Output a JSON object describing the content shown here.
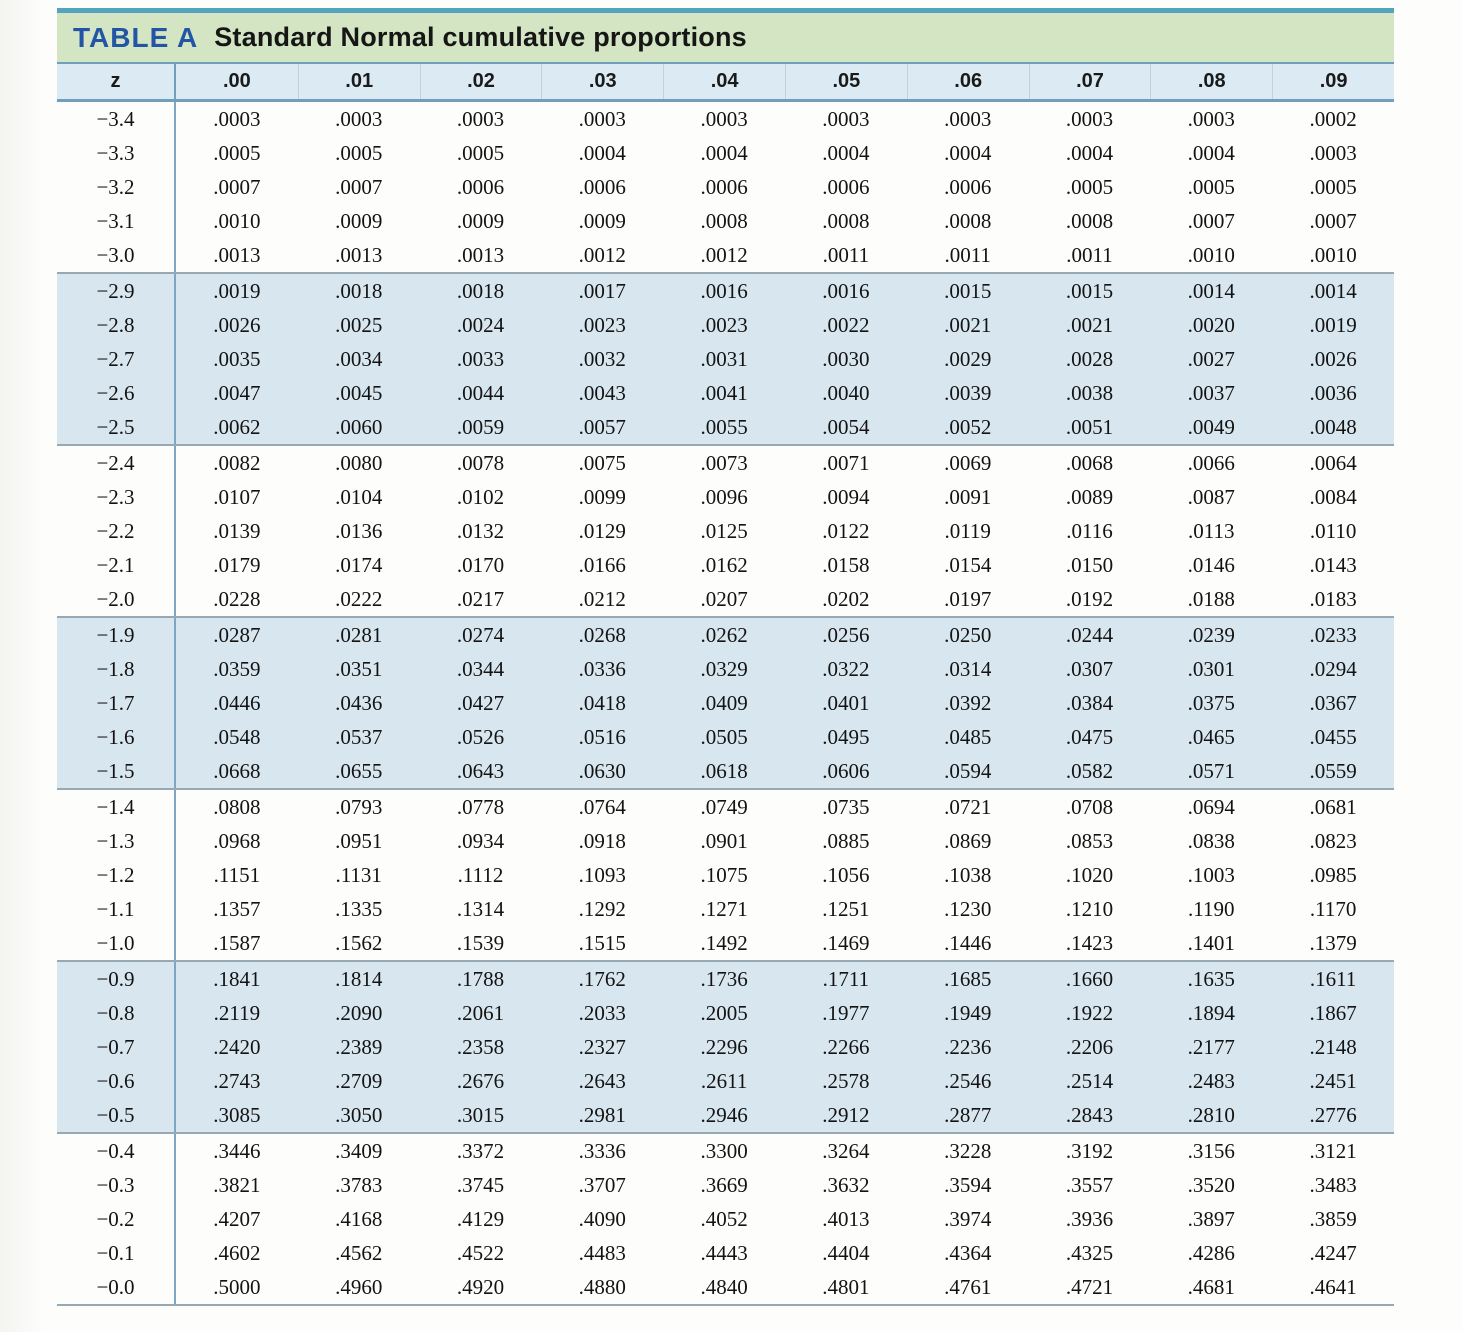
{
  "title": {
    "label": "TABLE A",
    "text": "Standard Normal cumulative proportions"
  },
  "colors": {
    "top_rule": "#55a4bf",
    "title_bar_bg": "#d3e5c2",
    "title_label_blue": "#2355a6",
    "header_row_bg": "#dceaf3",
    "header_rule": "#6f9fbd",
    "band_blue": "#d8e6ef",
    "band_white": "#fdfdfc",
    "block_rule": "#98a8b2",
    "z_divider": "#7ba6c4"
  },
  "table": {
    "corner_header": "z",
    "column_headers": [
      ".00",
      ".01",
      ".02",
      ".03",
      ".04",
      ".05",
      ".06",
      ".07",
      ".08",
      ".09"
    ],
    "rows": [
      {
        "z": "−3.4",
        "values": [
          ".0003",
          ".0003",
          ".0003",
          ".0003",
          ".0003",
          ".0003",
          ".0003",
          ".0003",
          ".0003",
          ".0002"
        ]
      },
      {
        "z": "−3.3",
        "values": [
          ".0005",
          ".0005",
          ".0005",
          ".0004",
          ".0004",
          ".0004",
          ".0004",
          ".0004",
          ".0004",
          ".0003"
        ]
      },
      {
        "z": "−3.2",
        "values": [
          ".0007",
          ".0007",
          ".0006",
          ".0006",
          ".0006",
          ".0006",
          ".0006",
          ".0005",
          ".0005",
          ".0005"
        ]
      },
      {
        "z": "−3.1",
        "values": [
          ".0010",
          ".0009",
          ".0009",
          ".0009",
          ".0008",
          ".0008",
          ".0008",
          ".0008",
          ".0007",
          ".0007"
        ]
      },
      {
        "z": "−3.0",
        "values": [
          ".0013",
          ".0013",
          ".0013",
          ".0012",
          ".0012",
          ".0011",
          ".0011",
          ".0011",
          ".0010",
          ".0010"
        ]
      },
      {
        "z": "−2.9",
        "values": [
          ".0019",
          ".0018",
          ".0018",
          ".0017",
          ".0016",
          ".0016",
          ".0015",
          ".0015",
          ".0014",
          ".0014"
        ]
      },
      {
        "z": "−2.8",
        "values": [
          ".0026",
          ".0025",
          ".0024",
          ".0023",
          ".0023",
          ".0022",
          ".0021",
          ".0021",
          ".0020",
          ".0019"
        ]
      },
      {
        "z": "−2.7",
        "values": [
          ".0035",
          ".0034",
          ".0033",
          ".0032",
          ".0031",
          ".0030",
          ".0029",
          ".0028",
          ".0027",
          ".0026"
        ]
      },
      {
        "z": "−2.6",
        "values": [
          ".0047",
          ".0045",
          ".0044",
          ".0043",
          ".0041",
          ".0040",
          ".0039",
          ".0038",
          ".0037",
          ".0036"
        ]
      },
      {
        "z": "−2.5",
        "values": [
          ".0062",
          ".0060",
          ".0059",
          ".0057",
          ".0055",
          ".0054",
          ".0052",
          ".0051",
          ".0049",
          ".0048"
        ]
      },
      {
        "z": "−2.4",
        "values": [
          ".0082",
          ".0080",
          ".0078",
          ".0075",
          ".0073",
          ".0071",
          ".0069",
          ".0068",
          ".0066",
          ".0064"
        ]
      },
      {
        "z": "−2.3",
        "values": [
          ".0107",
          ".0104",
          ".0102",
          ".0099",
          ".0096",
          ".0094",
          ".0091",
          ".0089",
          ".0087",
          ".0084"
        ]
      },
      {
        "z": "−2.2",
        "values": [
          ".0139",
          ".0136",
          ".0132",
          ".0129",
          ".0125",
          ".0122",
          ".0119",
          ".0116",
          ".0113",
          ".0110"
        ]
      },
      {
        "z": "−2.1",
        "values": [
          ".0179",
          ".0174",
          ".0170",
          ".0166",
          ".0162",
          ".0158",
          ".0154",
          ".0150",
          ".0146",
          ".0143"
        ]
      },
      {
        "z": "−2.0",
        "values": [
          ".0228",
          ".0222",
          ".0217",
          ".0212",
          ".0207",
          ".0202",
          ".0197",
          ".0192",
          ".0188",
          ".0183"
        ]
      },
      {
        "z": "−1.9",
        "values": [
          ".0287",
          ".0281",
          ".0274",
          ".0268",
          ".0262",
          ".0256",
          ".0250",
          ".0244",
          ".0239",
          ".0233"
        ]
      },
      {
        "z": "−1.8",
        "values": [
          ".0359",
          ".0351",
          ".0344",
          ".0336",
          ".0329",
          ".0322",
          ".0314",
          ".0307",
          ".0301",
          ".0294"
        ]
      },
      {
        "z": "−1.7",
        "values": [
          ".0446",
          ".0436",
          ".0427",
          ".0418",
          ".0409",
          ".0401",
          ".0392",
          ".0384",
          ".0375",
          ".0367"
        ]
      },
      {
        "z": "−1.6",
        "values": [
          ".0548",
          ".0537",
          ".0526",
          ".0516",
          ".0505",
          ".0495",
          ".0485",
          ".0475",
          ".0465",
          ".0455"
        ]
      },
      {
        "z": "−1.5",
        "values": [
          ".0668",
          ".0655",
          ".0643",
          ".0630",
          ".0618",
          ".0606",
          ".0594",
          ".0582",
          ".0571",
          ".0559"
        ]
      },
      {
        "z": "−1.4",
        "values": [
          ".0808",
          ".0793",
          ".0778",
          ".0764",
          ".0749",
          ".0735",
          ".0721",
          ".0708",
          ".0694",
          ".0681"
        ]
      },
      {
        "z": "−1.3",
        "values": [
          ".0968",
          ".0951",
          ".0934",
          ".0918",
          ".0901",
          ".0885",
          ".0869",
          ".0853",
          ".0838",
          ".0823"
        ]
      },
      {
        "z": "−1.2",
        "values": [
          ".1151",
          ".1131",
          ".1112",
          ".1093",
          ".1075",
          ".1056",
          ".1038",
          ".1020",
          ".1003",
          ".0985"
        ]
      },
      {
        "z": "−1.1",
        "values": [
          ".1357",
          ".1335",
          ".1314",
          ".1292",
          ".1271",
          ".1251",
          ".1230",
          ".1210",
          ".1190",
          ".1170"
        ]
      },
      {
        "z": "−1.0",
        "values": [
          ".1587",
          ".1562",
          ".1539",
          ".1515",
          ".1492",
          ".1469",
          ".1446",
          ".1423",
          ".1401",
          ".1379"
        ]
      },
      {
        "z": "−0.9",
        "values": [
          ".1841",
          ".1814",
          ".1788",
          ".1762",
          ".1736",
          ".1711",
          ".1685",
          ".1660",
          ".1635",
          ".1611"
        ]
      },
      {
        "z": "−0.8",
        "values": [
          ".2119",
          ".2090",
          ".2061",
          ".2033",
          ".2005",
          ".1977",
          ".1949",
          ".1922",
          ".1894",
          ".1867"
        ]
      },
      {
        "z": "−0.7",
        "values": [
          ".2420",
          ".2389",
          ".2358",
          ".2327",
          ".2296",
          ".2266",
          ".2236",
          ".2206",
          ".2177",
          ".2148"
        ]
      },
      {
        "z": "−0.6",
        "values": [
          ".2743",
          ".2709",
          ".2676",
          ".2643",
          ".2611",
          ".2578",
          ".2546",
          ".2514",
          ".2483",
          ".2451"
        ]
      },
      {
        "z": "−0.5",
        "values": [
          ".3085",
          ".3050",
          ".3015",
          ".2981",
          ".2946",
          ".2912",
          ".2877",
          ".2843",
          ".2810",
          ".2776"
        ]
      },
      {
        "z": "−0.4",
        "values": [
          ".3446",
          ".3409",
          ".3372",
          ".3336",
          ".3300",
          ".3264",
          ".3228",
          ".3192",
          ".3156",
          ".3121"
        ]
      },
      {
        "z": "−0.3",
        "values": [
          ".3821",
          ".3783",
          ".3745",
          ".3707",
          ".3669",
          ".3632",
          ".3594",
          ".3557",
          ".3520",
          ".3483"
        ]
      },
      {
        "z": "−0.2",
        "values": [
          ".4207",
          ".4168",
          ".4129",
          ".4090",
          ".4052",
          ".4013",
          ".3974",
          ".3936",
          ".3897",
          ".3859"
        ]
      },
      {
        "z": "−0.1",
        "values": [
          ".4602",
          ".4562",
          ".4522",
          ".4483",
          ".4443",
          ".4404",
          ".4364",
          ".4325",
          ".4286",
          ".4247"
        ]
      },
      {
        "z": "−0.0",
        "values": [
          ".5000",
          ".4960",
          ".4920",
          ".4880",
          ".4840",
          ".4801",
          ".4761",
          ".4721",
          ".4681",
          ".4641"
        ]
      }
    ]
  }
}
